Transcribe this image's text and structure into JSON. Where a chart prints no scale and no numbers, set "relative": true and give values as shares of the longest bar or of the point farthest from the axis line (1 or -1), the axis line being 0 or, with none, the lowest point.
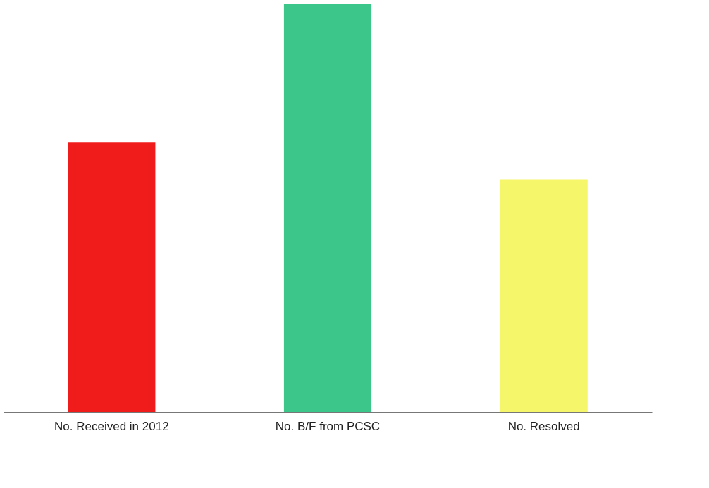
{
  "chart_data": {
    "type": "bar",
    "relative": true,
    "categories": [
      "No. Received in 2012",
      "No. B/F from PCSC",
      "No. Resolved"
    ],
    "values": [
      0.66,
      1,
      0.57
    ],
    "colors": [
      "#f01c1c",
      "#3cc68a",
      "#f6f66a"
    ]
  }
}
